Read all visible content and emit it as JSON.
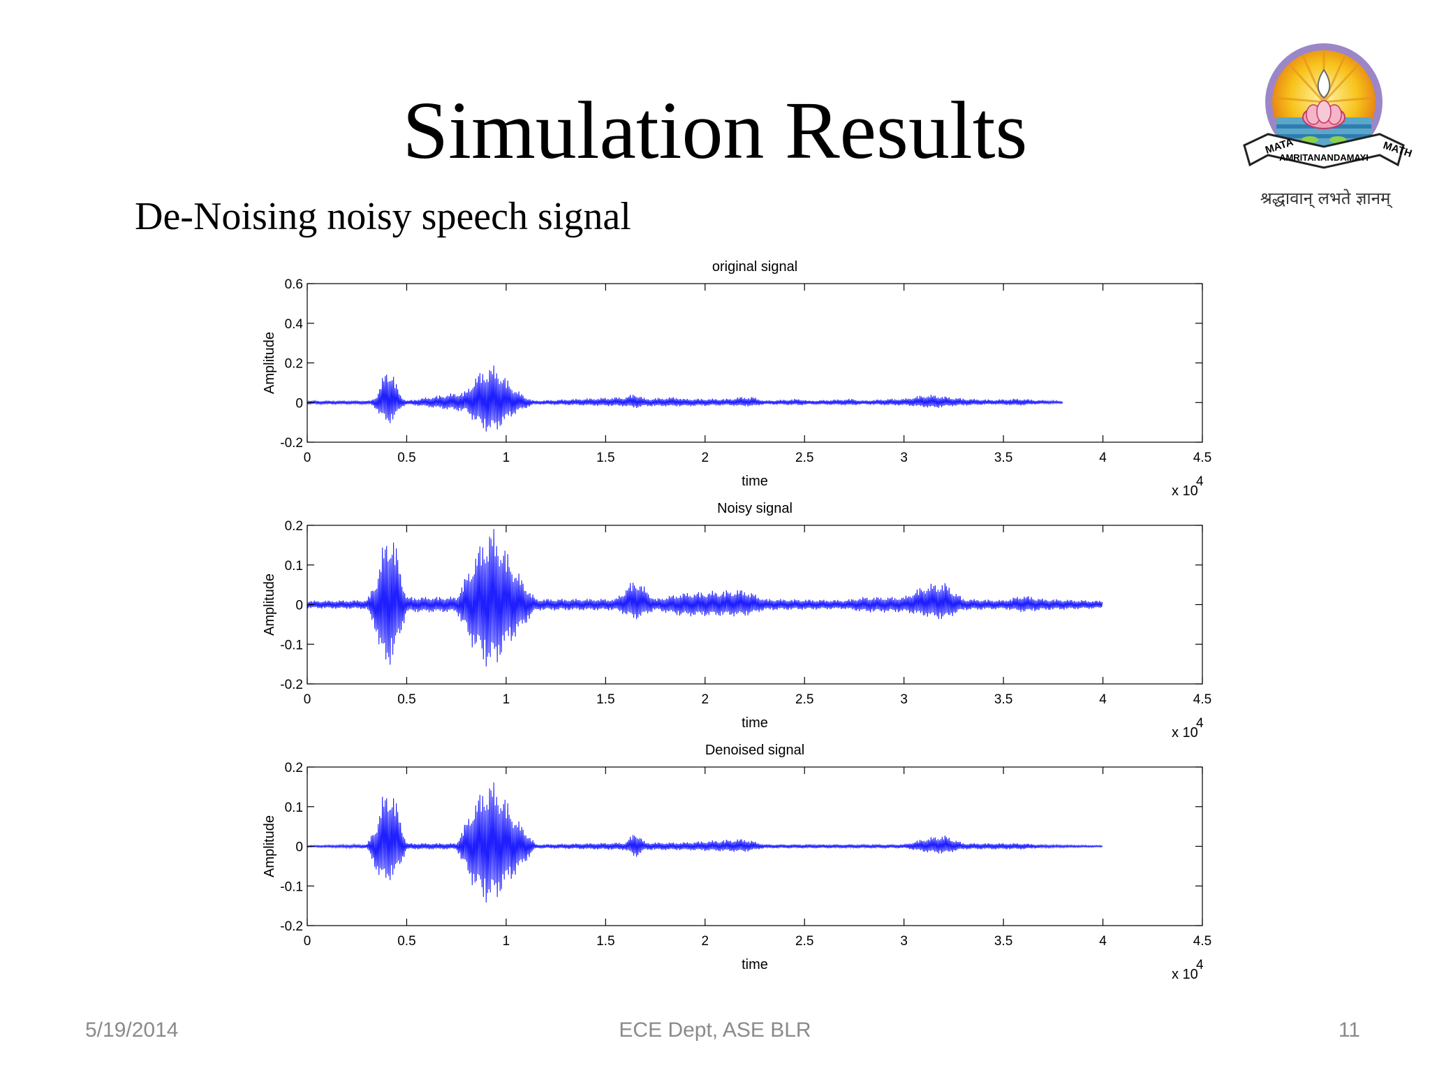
{
  "slide": {
    "title": "Simulation Results",
    "subtitle": "De-Noising noisy speech signal",
    "footer_date": "5/19/2014",
    "footer_center": "ECE Dept, ASE BLR",
    "footer_page": "11"
  },
  "logo": {
    "icon": "amrita-emblem-icon",
    "text_top_left": "MATA",
    "text_top_mid": "AMRITANANDAMAYI",
    "text_top_right": "MATH",
    "motto": "श्रद्धावान् लभते ज्ञानम्"
  },
  "colors": {
    "signal": "#1f1fff",
    "axis": "#000000"
  },
  "chart_data": [
    {
      "type": "line",
      "title": "original signal",
      "xlabel": "time",
      "ylabel": "Amplitude",
      "x_multiplier": "x 10",
      "x_multiplier_exp": "4",
      "xlim": [
        0,
        4.5
      ],
      "ylim": [
        -0.2,
        0.6
      ],
      "xticks": [
        0,
        0.5,
        1,
        1.5,
        2,
        2.5,
        3,
        3.5,
        4,
        4.5
      ],
      "xtick_labels": [
        "0",
        "0.5",
        "1",
        "1.5",
        "2",
        "2.5",
        "3",
        "3.5",
        "4",
        "4.5"
      ],
      "yticks": [
        -0.2,
        0,
        0.2,
        0.4,
        0.6
      ],
      "ytick_labels": [
        "-0.2",
        "0",
        "0.2",
        "0.4",
        "0.6"
      ],
      "grid": false,
      "series": [
        {
          "x": [
            0.32,
            0.35,
            0.37,
            0.39,
            0.41,
            0.43,
            0.45,
            0.47,
            0.5,
            0.8,
            0.84,
            0.88,
            0.92,
            0.95,
            0.98,
            1.02,
            1.06,
            1.1,
            1.14,
            1.6,
            1.65,
            1.7,
            1.86,
            1.89,
            2.12,
            2.18,
            2.24,
            2.3,
            2.48,
            2.52,
            2.75,
            2.78,
            2.93,
            3.0,
            3.1,
            3.16,
            3.22,
            3.32,
            3.45,
            3.55,
            3.6,
            3.65,
            3.75,
            3.8
          ],
          "y_max": [
            0.01,
            0.04,
            0.1,
            0.16,
            0.19,
            0.16,
            0.09,
            0.04,
            0.01,
            0.06,
            0.13,
            0.17,
            0.19,
            0.19,
            0.15,
            0.1,
            0.06,
            0.03,
            0.01,
            0.03,
            0.05,
            0.02,
            0.03,
            0.02,
            0.02,
            0.03,
            0.03,
            0.01,
            0.02,
            0.01,
            0.02,
            0.01,
            0.02,
            0.02,
            0.04,
            0.04,
            0.03,
            0.02,
            0.015,
            0.02,
            0.02,
            0.015,
            0.01,
            0.005
          ],
          "y_min": [
            -0.01,
            -0.04,
            -0.08,
            -0.1,
            -0.11,
            -0.1,
            -0.07,
            -0.03,
            -0.01,
            -0.05,
            -0.1,
            -0.14,
            -0.16,
            -0.15,
            -0.12,
            -0.08,
            -0.05,
            -0.03,
            -0.01,
            -0.02,
            -0.03,
            -0.02,
            -0.02,
            -0.02,
            -0.015,
            -0.02,
            -0.02,
            -0.01,
            -0.015,
            -0.01,
            -0.015,
            -0.01,
            -0.015,
            -0.015,
            -0.025,
            -0.03,
            -0.02,
            -0.015,
            -0.01,
            -0.015,
            -0.015,
            -0.01,
            -0.005,
            -0.005
          ]
        }
      ]
    },
    {
      "type": "line",
      "title": "Noisy signal",
      "xlabel": "time",
      "ylabel": "Amplitude",
      "x_multiplier": "x 10",
      "x_multiplier_exp": "4",
      "xlim": [
        0,
        4.5
      ],
      "ylim": [
        -0.2,
        0.2
      ],
      "xticks": [
        0,
        0.5,
        1,
        1.5,
        2,
        2.5,
        3,
        3.5,
        4,
        4.5
      ],
      "xtick_labels": [
        "0",
        "0.5",
        "1",
        "1.5",
        "2",
        "2.5",
        "3",
        "3.5",
        "4",
        "4.5"
      ],
      "yticks": [
        -0.2,
        -0.1,
        0,
        0.1,
        0.2
      ],
      "ytick_labels": [
        "-0.2",
        "-0.1",
        "0",
        "0.1",
        "0.2"
      ],
      "grid": false,
      "series": [
        {
          "x": [
            0.0,
            0.3,
            0.35,
            0.38,
            0.41,
            0.44,
            0.47,
            0.5,
            0.75,
            0.82,
            0.88,
            0.92,
            0.95,
            0.99,
            1.04,
            1.1,
            1.15,
            1.55,
            1.65,
            1.75,
            1.88,
            2.2,
            2.3,
            2.7,
            2.8,
            3.0,
            3.1,
            3.2,
            3.3,
            3.5,
            3.6,
            3.7,
            4.0
          ],
          "y_max": [
            0.01,
            0.012,
            0.07,
            0.15,
            0.2,
            0.17,
            0.09,
            0.02,
            0.02,
            0.1,
            0.17,
            0.2,
            0.19,
            0.15,
            0.1,
            0.05,
            0.015,
            0.015,
            0.07,
            0.015,
            0.03,
            0.04,
            0.015,
            0.012,
            0.02,
            0.02,
            0.05,
            0.06,
            0.015,
            0.012,
            0.025,
            0.015,
            0.01
          ],
          "y_min": [
            -0.01,
            -0.012,
            -0.08,
            -0.17,
            -0.16,
            -0.14,
            -0.08,
            -0.02,
            -0.02,
            -0.1,
            -0.15,
            -0.17,
            -0.16,
            -0.12,
            -0.09,
            -0.05,
            -0.015,
            -0.015,
            -0.04,
            -0.015,
            -0.03,
            -0.03,
            -0.015,
            -0.012,
            -0.02,
            -0.02,
            -0.03,
            -0.04,
            -0.015,
            -0.012,
            -0.02,
            -0.015,
            -0.01
          ]
        }
      ]
    },
    {
      "type": "line",
      "title": "Denoised signal",
      "xlabel": "time",
      "ylabel": "Amplitude",
      "x_multiplier": "x 10",
      "x_multiplier_exp": "4",
      "xlim": [
        0,
        4.5
      ],
      "ylim": [
        -0.2,
        0.2
      ],
      "xticks": [
        0,
        0.5,
        1,
        1.5,
        2,
        2.5,
        3,
        3.5,
        4,
        4.5
      ],
      "xtick_labels": [
        "0",
        "0.5",
        "1",
        "1.5",
        "2",
        "2.5",
        "3",
        "3.5",
        "4",
        "4.5"
      ],
      "yticks": [
        -0.2,
        -0.1,
        0,
        0.1,
        0.2
      ],
      "ytick_labels": [
        "-0.2",
        "-0.1",
        "0",
        "0.1",
        "0.2"
      ],
      "grid": false,
      "series": [
        {
          "x": [
            0.0,
            0.3,
            0.35,
            0.38,
            0.41,
            0.44,
            0.47,
            0.5,
            0.75,
            0.82,
            0.88,
            0.92,
            0.95,
            0.99,
            1.04,
            1.1,
            1.15,
            1.6,
            1.65,
            1.7,
            1.88,
            2.2,
            2.3,
            3.0,
            3.1,
            3.2,
            3.3,
            3.6,
            3.7,
            4.0
          ],
          "y_max": [
            0.002,
            0.005,
            0.06,
            0.13,
            0.16,
            0.13,
            0.07,
            0.008,
            0.008,
            0.09,
            0.15,
            0.17,
            0.16,
            0.13,
            0.08,
            0.04,
            0.005,
            0.01,
            0.04,
            0.01,
            0.01,
            0.02,
            0.005,
            0.005,
            0.02,
            0.03,
            0.008,
            0.008,
            0.004,
            0.002
          ],
          "y_min": [
            -0.002,
            -0.005,
            -0.07,
            -0.1,
            -0.09,
            -0.08,
            -0.05,
            -0.008,
            -0.008,
            -0.09,
            -0.14,
            -0.15,
            -0.14,
            -0.11,
            -0.08,
            -0.04,
            -0.005,
            -0.01,
            -0.03,
            -0.01,
            -0.01,
            -0.015,
            -0.005,
            -0.005,
            -0.015,
            -0.02,
            -0.008,
            -0.008,
            -0.004,
            -0.002
          ]
        }
      ]
    }
  ]
}
